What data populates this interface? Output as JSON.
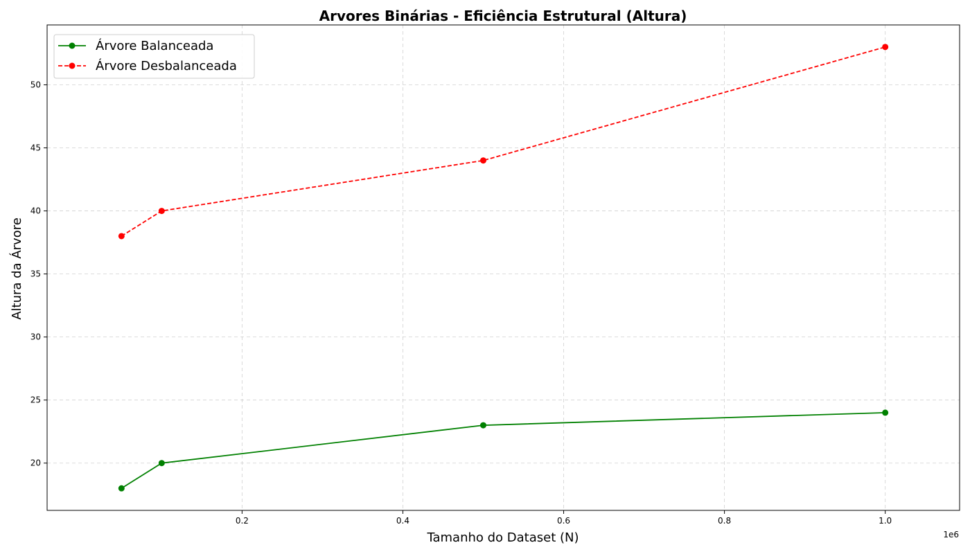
{
  "chart_data": {
    "type": "line",
    "title": "Arvores Binárias - Eficiência Estrutural (Altura)",
    "xlabel": "Tamanho do Dataset (N)",
    "ylabel": "Altura da Árvore",
    "x_offset_label": "1e6",
    "xlim": [
      -0.0425,
      1.0925
    ],
    "ylim": [
      16.25,
      54.75
    ],
    "xticks": [
      0.2,
      0.4,
      0.6,
      0.8,
      1.0
    ],
    "xtick_labels": [
      "0.2",
      "0.4",
      "0.6",
      "0.8",
      "1.0"
    ],
    "yticks": [
      20,
      25,
      30,
      35,
      40,
      45,
      50
    ],
    "ytick_labels": [
      "20",
      "25",
      "30",
      "35",
      "40",
      "45",
      "50"
    ],
    "grid": true,
    "legend_position": "top-left",
    "x": [
      0.05,
      0.1,
      0.5,
      1.0
    ],
    "series": [
      {
        "name": "Árvore Balanceada",
        "values": [
          18,
          20,
          23,
          24
        ],
        "color": "#008000",
        "style": "solid",
        "marker": "circle"
      },
      {
        "name": "Árvore Desbalanceada",
        "values": [
          38,
          40,
          44,
          53
        ],
        "color": "#ff0000",
        "style": "dashed",
        "marker": "circle"
      }
    ]
  }
}
